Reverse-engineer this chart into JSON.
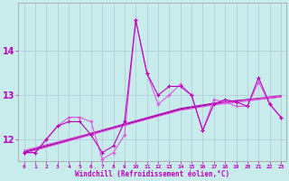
{
  "xlabel": "Windchill (Refroidissement éolien,°C)",
  "background_color": "#c8ecec",
  "grid_color": "#b0c8d8",
  "line_color1": "#bb00bb",
  "line_color2": "#dd55dd",
  "line_color3": "#990099",
  "hours": [
    0,
    1,
    2,
    3,
    4,
    5,
    6,
    7,
    8,
    9,
    10,
    11,
    12,
    13,
    14,
    15,
    16,
    17,
    18,
    19,
    20,
    21,
    22,
    23
  ],
  "series1": [
    11.7,
    11.7,
    12.0,
    12.3,
    12.4,
    12.4,
    12.1,
    11.7,
    11.85,
    12.4,
    14.7,
    13.5,
    13.0,
    13.2,
    13.2,
    13.0,
    12.2,
    12.8,
    12.9,
    12.85,
    12.75,
    13.4,
    12.8,
    12.5
  ],
  "series2": [
    11.7,
    11.7,
    12.0,
    12.3,
    12.5,
    12.5,
    12.4,
    11.55,
    11.7,
    12.1,
    14.7,
    13.5,
    12.8,
    13.0,
    13.25,
    13.0,
    12.2,
    12.9,
    12.85,
    12.75,
    12.75,
    13.3,
    12.8,
    12.5
  ],
  "linear1": [
    11.72,
    11.79,
    11.86,
    11.93,
    12.0,
    12.07,
    12.14,
    12.21,
    12.28,
    12.35,
    12.42,
    12.49,
    12.56,
    12.63,
    12.7,
    12.74,
    12.78,
    12.82,
    12.85,
    12.88,
    12.9,
    12.92,
    12.94,
    12.96
  ],
  "linear2": [
    11.75,
    11.81,
    11.88,
    11.94,
    12.01,
    12.07,
    12.14,
    12.2,
    12.27,
    12.33,
    12.4,
    12.46,
    12.53,
    12.59,
    12.66,
    12.7,
    12.74,
    12.78,
    12.81,
    12.84,
    12.87,
    12.9,
    12.93,
    12.96
  ],
  "linear3": [
    11.7,
    11.77,
    11.84,
    11.91,
    11.98,
    12.05,
    12.12,
    12.19,
    12.26,
    12.33,
    12.4,
    12.47,
    12.54,
    12.61,
    12.68,
    12.72,
    12.76,
    12.8,
    12.84,
    12.87,
    12.9,
    12.93,
    12.96,
    12.99
  ],
  "linear4": [
    11.68,
    11.75,
    11.82,
    11.89,
    11.96,
    12.03,
    12.1,
    12.17,
    12.24,
    12.31,
    12.38,
    12.45,
    12.52,
    12.59,
    12.66,
    12.7,
    12.74,
    12.79,
    12.83,
    12.86,
    12.89,
    12.92,
    12.95,
    12.98
  ],
  "ylim": [
    11.5,
    15.1
  ],
  "yticks": [
    12,
    13,
    14
  ],
  "xlim": [
    -0.5,
    23.5
  ]
}
